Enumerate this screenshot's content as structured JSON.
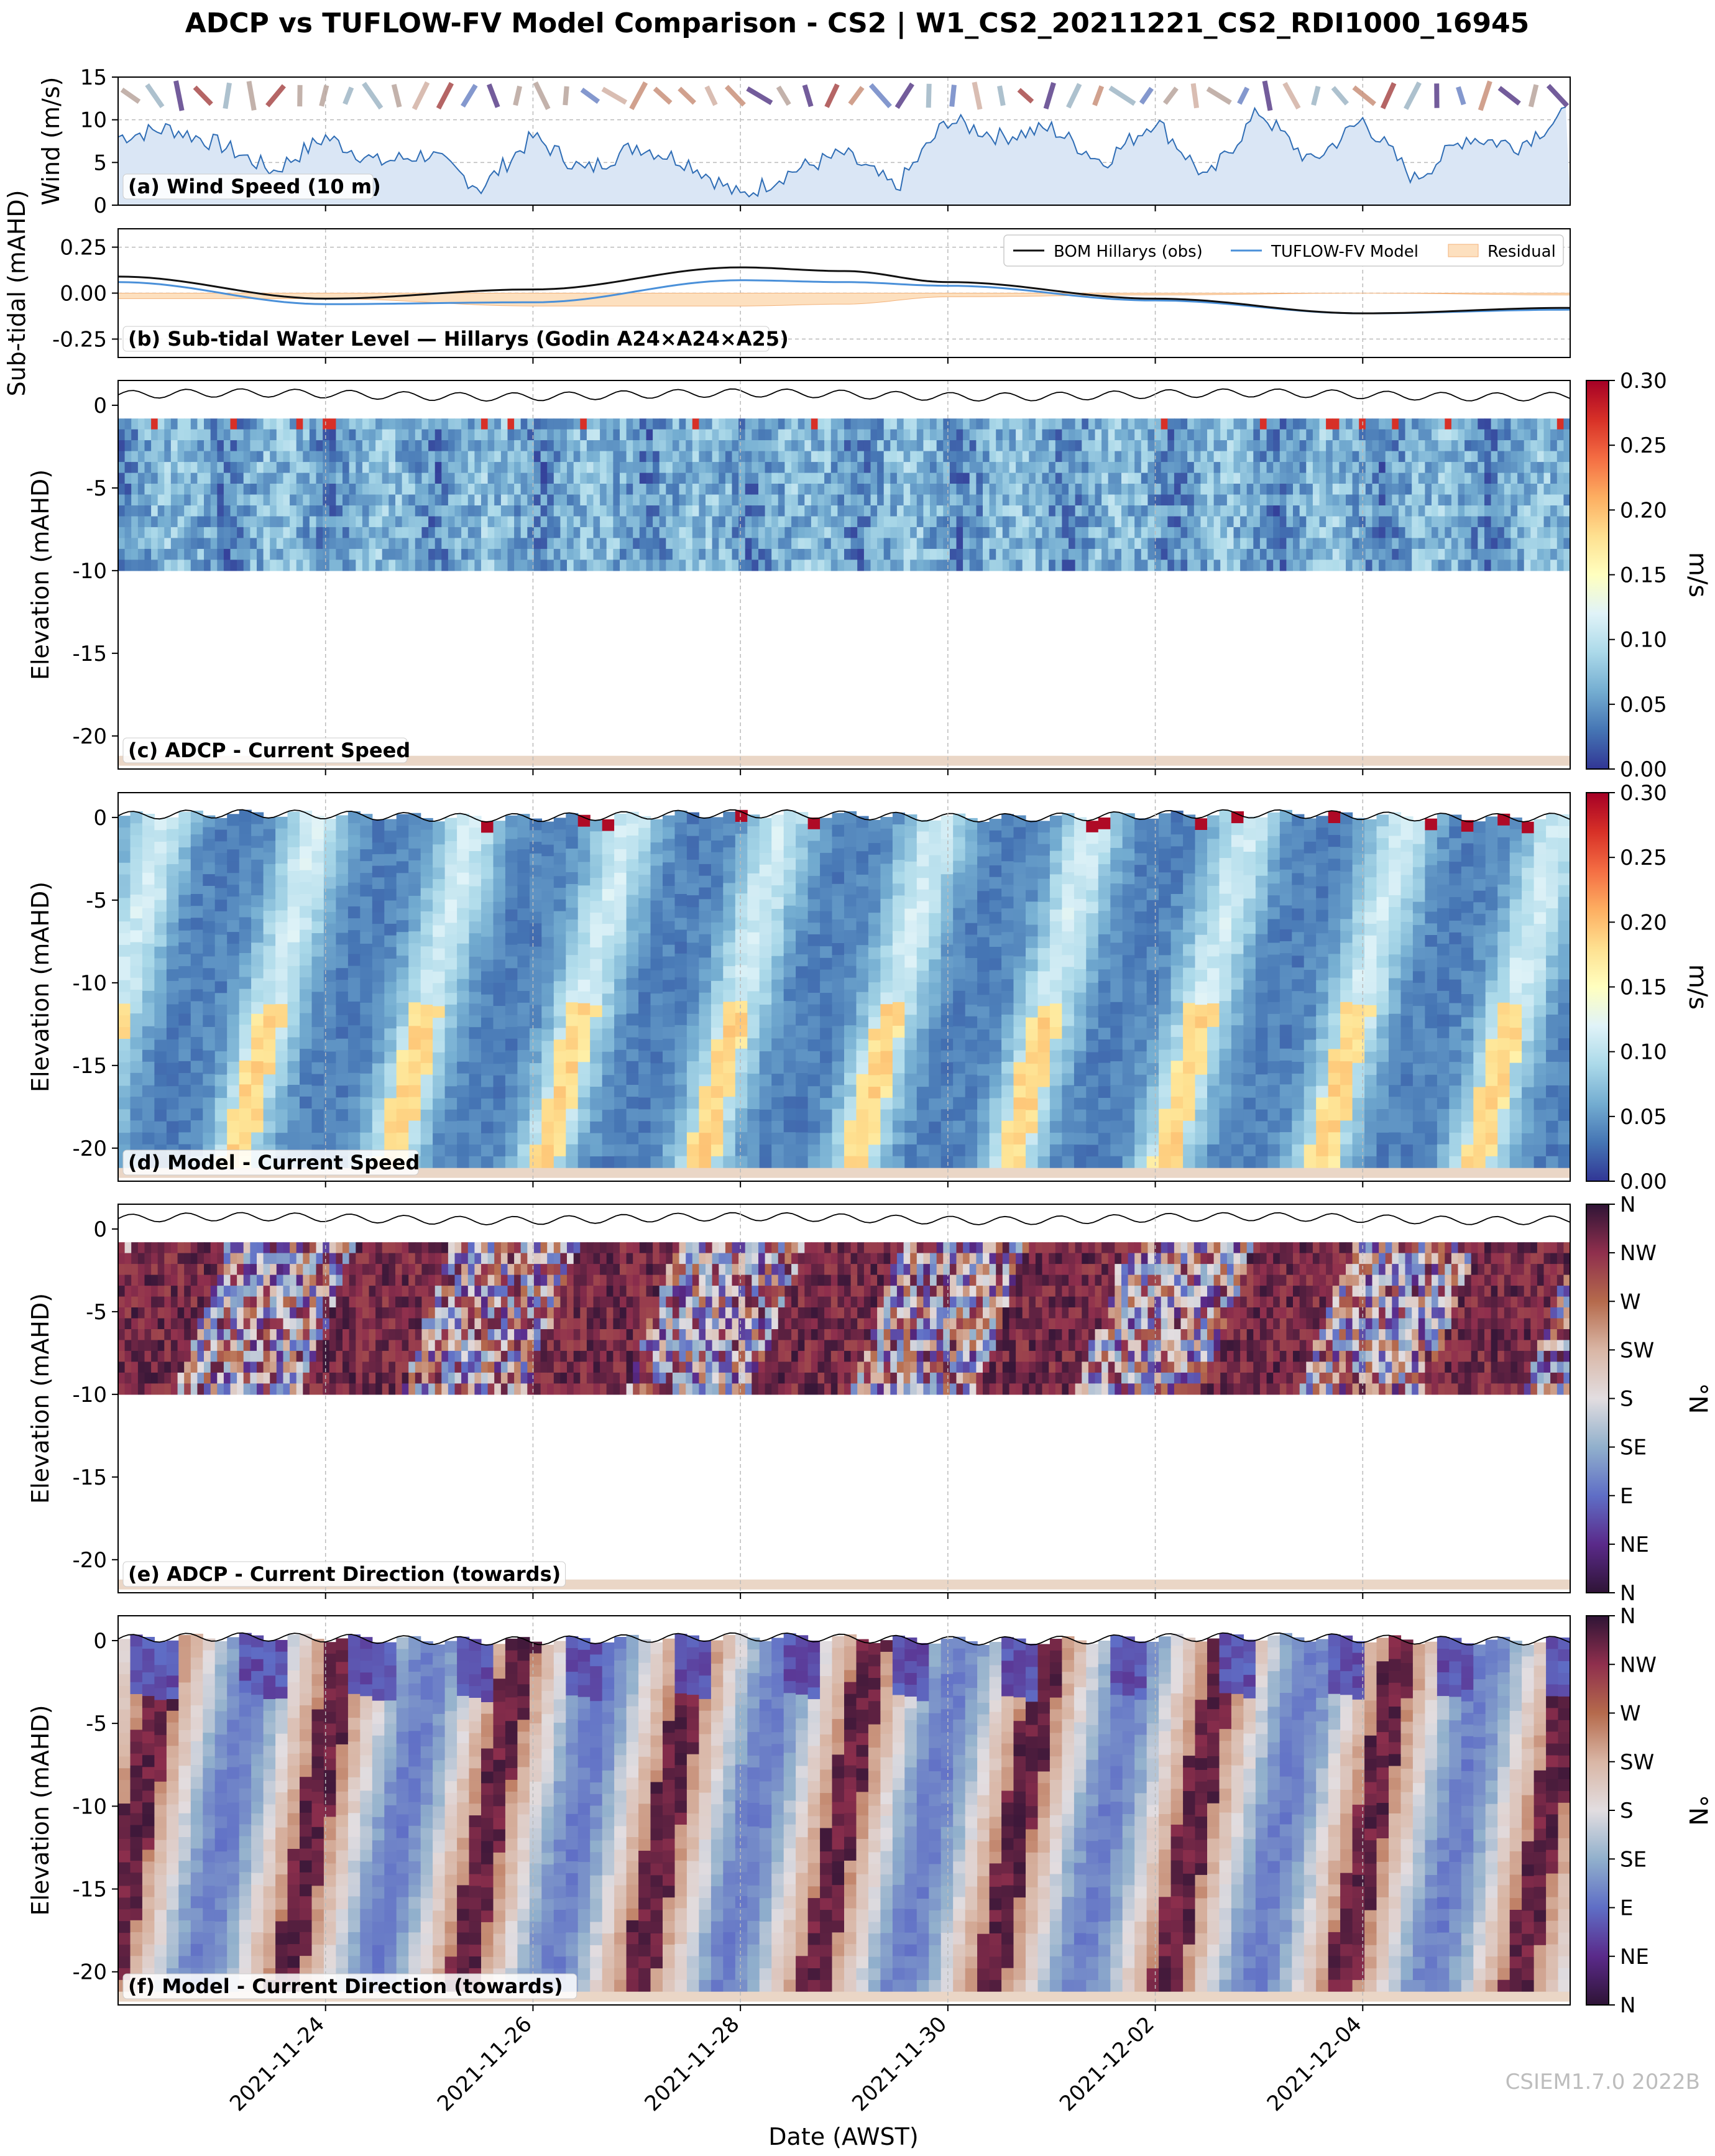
{
  "figure": {
    "title": "ADCP vs TUFLOW-FV Model Comparison - CS2 | W1_CS2_20211221_CS2_RDI1000_16945",
    "xlabel": "Date (AWST)",
    "watermark": "CSIEM1.7.0 2022B",
    "x_ticks": [
      "2021-11-24",
      "2021-11-26",
      "2021-11-28",
      "2021-11-30",
      "2021-12-02",
      "2021-12-04"
    ]
  },
  "colors": {
    "wind_fill": "#dae6f5",
    "wind_line": "#2f6db5",
    "obs_line": "#111111",
    "model_line": "#4a90d9",
    "residual_fill": "#fde0bf",
    "seabed": "#ead6c6",
    "speed_cmap": [
      "#313695",
      "#4575b4",
      "#74add1",
      "#abd9e9",
      "#e0f3f8",
      "#ffffbf",
      "#fee090",
      "#fdae61",
      "#f46d43",
      "#d73027",
      "#a50026"
    ],
    "dir_cmap": [
      "#2f1436",
      "#5a2a8a",
      "#5f6ec6",
      "#91b0cc",
      "#e2dde0",
      "#d9b6a5",
      "#b56a4c",
      "#8f2f4d",
      "#2f1436"
    ]
  },
  "chart_data": [
    {
      "panel": "a",
      "type": "area",
      "label": "(a) Wind Speed (10 m)",
      "ylabel": "Wind (m/s)",
      "ylim": [
        0,
        15
      ],
      "yticks": [
        "0",
        "5",
        "10",
        "15"
      ],
      "xlim": [
        "2021-11-22 00:00",
        "2021-12-06 00:00"
      ],
      "x": [
        "2021-11-22 00:00",
        "2021-11-22 12:00",
        "2021-11-23 00:00",
        "2021-11-23 12:00",
        "2021-11-24 00:00",
        "2021-11-24 12:00",
        "2021-11-25 00:00",
        "2021-11-25 12:00",
        "2021-11-26 00:00",
        "2021-11-26 12:00",
        "2021-11-27 00:00",
        "2021-11-27 12:00",
        "2021-11-28 00:00",
        "2021-11-28 12:00",
        "2021-11-29 00:00",
        "2021-11-29 12:00",
        "2021-11-30 00:00",
        "2021-11-30 12:00",
        "2021-12-01 00:00",
        "2021-12-01 12:00",
        "2021-12-02 00:00",
        "2021-12-02 12:00",
        "2021-12-03 00:00",
        "2021-12-03 12:00",
        "2021-12-04 00:00",
        "2021-12-04 12:00",
        "2021-12-05 00:00",
        "2021-12-05 12:00",
        "2021-12-06 00:00"
      ],
      "values": [
        8,
        9,
        7,
        4,
        8,
        5,
        6,
        2,
        8,
        4,
        7,
        5,
        1,
        4,
        6,
        2,
        10,
        8,
        9,
        5,
        10,
        3,
        11,
        5,
        10,
        3,
        8,
        7,
        11
      ],
      "annotation": "wind direction arrows along top of panel"
    },
    {
      "panel": "b",
      "type": "line",
      "label": "(b) Sub-tidal Water Level — Hillarys (Godin A24×A24×A25)",
      "ylabel": "Sub-tidal (mAHD)",
      "ylim": [
        -0.35,
        0.35
      ],
      "yticks": [
        "0.25",
        "0.00",
        "-0.25"
      ],
      "legend_position": "top-right",
      "x": [
        "2021-11-22 00:00",
        "2021-11-24 00:00",
        "2021-11-26 00:00",
        "2021-11-28 00:00",
        "2021-11-29 00:00",
        "2021-11-30 00:00",
        "2021-12-02 00:00",
        "2021-12-04 00:00",
        "2021-12-06 00:00"
      ],
      "series": [
        {
          "name": "BOM Hillarys (obs)",
          "values": [
            0.09,
            -0.03,
            0.02,
            0.14,
            0.12,
            0.06,
            -0.03,
            -0.11,
            -0.08
          ]
        },
        {
          "name": "TUFLOW-FV Model",
          "values": [
            0.06,
            -0.06,
            -0.05,
            0.07,
            0.06,
            0.04,
            -0.04,
            -0.11,
            -0.09
          ]
        },
        {
          "name": "Residual",
          "values": [
            -0.03,
            -0.03,
            -0.07,
            -0.07,
            -0.06,
            -0.02,
            -0.01,
            0.0,
            -0.01
          ]
        }
      ]
    },
    {
      "panel": "c",
      "type": "heatmap",
      "label": "(c) ADCP - Current Speed",
      "ylabel": "Elevation (mAHD)",
      "ylim": [
        -22,
        1.5
      ],
      "yticks": [
        "0",
        "-5",
        "-10",
        "-15",
        "-20"
      ],
      "z_range": [
        0,
        0.3
      ],
      "colorbar_label": "m/s",
      "colorbar_ticks": [
        "0.00",
        "0.05",
        "0.10",
        "0.15",
        "0.20",
        "0.25",
        "0.30"
      ],
      "data_elevation_range": [
        -10,
        -0.8
      ],
      "columns_days_from_start": [
        0.0,
        1.0,
        2.0,
        3.0,
        4.0,
        5.0,
        6.0,
        7.0,
        8.0,
        9.0,
        10.0,
        11.0,
        12.0,
        13.0,
        14.0
      ],
      "mean_speed_by_day": [
        0.05,
        0.06,
        0.07,
        0.05,
        0.05,
        0.06,
        0.07,
        0.06,
        0.05,
        0.07,
        0.06,
        0.05,
        0.06,
        0.07,
        0.05
      ]
    },
    {
      "panel": "d",
      "type": "heatmap",
      "label": "(d) Model - Current Speed",
      "ylabel": "Elevation (mAHD)",
      "ylim": [
        -22,
        1.5
      ],
      "yticks": [
        "0",
        "-5",
        "-10",
        "-15",
        "-20"
      ],
      "z_range": [
        0,
        0.3
      ],
      "colorbar_label": "m/s",
      "colorbar_ticks": [
        "0.00",
        "0.05",
        "0.10",
        "0.15",
        "0.20",
        "0.25",
        "0.30"
      ],
      "data_elevation_range": [
        -21.2,
        0.3
      ],
      "near_bed_high_speed_days": [
        "2021-11-23",
        "2021-11-27",
        "2021-11-28",
        "2021-12-01",
        "2021-12-02",
        "2021-12-05"
      ]
    },
    {
      "panel": "e",
      "type": "heatmap",
      "label": "(e) ADCP - Current Direction (towards)",
      "ylabel": "Elevation (mAHD)",
      "ylim": [
        -22,
        1.5
      ],
      "yticks": [
        "0",
        "-5",
        "-10",
        "-15",
        "-20"
      ],
      "z_range": [
        0,
        360
      ],
      "colorbar_label": "°N",
      "colorbar_ticks": [
        "N",
        "NE",
        "E",
        "SE",
        "S",
        "SW",
        "W",
        "NW",
        "N"
      ],
      "data_elevation_range": [
        -10,
        -0.8
      ]
    },
    {
      "panel": "f",
      "type": "heatmap",
      "label": "(f) Model - Current Direction (towards)",
      "ylabel": "Elevation (mAHD)",
      "ylim": [
        -22,
        1.5
      ],
      "yticks": [
        "0",
        "-5",
        "-10",
        "-15",
        "-20"
      ],
      "z_range": [
        0,
        360
      ],
      "colorbar_label": "°N",
      "colorbar_ticks": [
        "N",
        "NE",
        "E",
        "SE",
        "S",
        "SW",
        "W",
        "NW",
        "N"
      ],
      "data_elevation_range": [
        -21.2,
        0.3
      ]
    }
  ]
}
